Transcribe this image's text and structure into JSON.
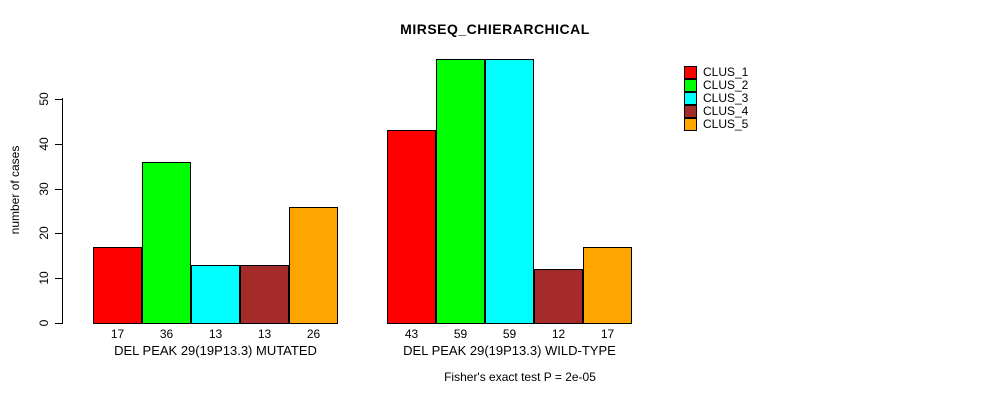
{
  "title": "MIRSEQ_CHIERARCHICAL",
  "ylabel": "number of cases",
  "footer": "Fisher's exact test P = 2e-05",
  "legend": {
    "entries": [
      {
        "label": "CLUS_1",
        "color": "#FF0000"
      },
      {
        "label": "CLUS_2",
        "color": "#00FF00"
      },
      {
        "label": "CLUS_3",
        "color": "#00FFFF"
      },
      {
        "label": "CLUS_4",
        "color": "#A52A2A"
      },
      {
        "label": "CLUS_5",
        "color": "#FFA500"
      }
    ]
  },
  "chart_data": {
    "type": "bar",
    "title": "MIRSEQ_CHIERARCHICAL",
    "xlabel": "",
    "ylabel": "number of cases",
    "ylim": [
      0,
      59
    ],
    "yticks": [
      0,
      10,
      20,
      30,
      40,
      50
    ],
    "grid": false,
    "legend_position": "top-right",
    "categories": [
      "DEL PEAK 29(19P13.3) MUTATED",
      "DEL PEAK 29(19P13.3) WILD-TYPE"
    ],
    "series": [
      {
        "name": "CLUS_1",
        "color": "#FF0000",
        "values": [
          17,
          43
        ]
      },
      {
        "name": "CLUS_2",
        "color": "#00FF00",
        "values": [
          36,
          59
        ]
      },
      {
        "name": "CLUS_3",
        "color": "#00FFFF",
        "values": [
          13,
          59
        ]
      },
      {
        "name": "CLUS_4",
        "color": "#A52A2A",
        "values": [
          13,
          12
        ]
      },
      {
        "name": "CLUS_5",
        "color": "#FFA500",
        "values": [
          26,
          17
        ]
      }
    ],
    "bar_value_labels": [
      [
        17,
        36,
        13,
        13,
        26
      ],
      [
        43,
        59,
        59,
        12,
        17
      ]
    ],
    "annotation": "Fisher's exact test P = 2e-05"
  }
}
